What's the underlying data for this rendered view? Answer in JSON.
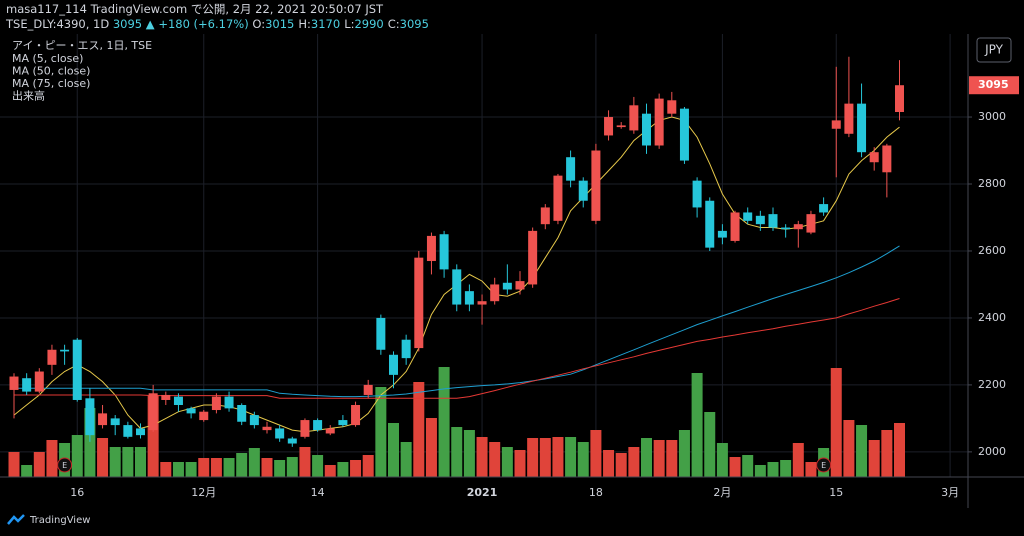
{
  "header": {
    "published": "masa117_114 TradingView.com で公開, 2月 22, 2021 20:50:07 JST",
    "symbol": "TSE_DLY:4390, 1D",
    "price": "3095",
    "arrow": "▲",
    "change": "+180 (+6.17%)",
    "ohlc_labels": [
      "O:",
      "H:",
      "L:",
      "C:"
    ],
    "ohlc_values": [
      3015,
      3170,
      2990,
      3095
    ]
  },
  "footer": {
    "brand": "TradingView"
  },
  "chart_data": {
    "type": "candlestick",
    "instrument": "アイ・ピー・エス, 1日, TSE",
    "currency": "JPY",
    "volume_name": "出来高",
    "up_color": "#ef5350",
    "down_color": "#26c6da",
    "volume_up_color": "#e0443a",
    "volume_down_color": "#43a047",
    "categories": [
      null,
      null,
      null,
      null,
      null,
      "16",
      null,
      null,
      null,
      null,
      null,
      null,
      null,
      null,
      null,
      "12月",
      null,
      null,
      null,
      null,
      null,
      null,
      null,
      null,
      "14",
      null,
      null,
      null,
      null,
      null,
      null,
      null,
      null,
      null,
      null,
      null,
      null,
      "2021",
      null,
      null,
      null,
      null,
      null,
      null,
      null,
      null,
      "18",
      null,
      null,
      null,
      null,
      null,
      null,
      null,
      null,
      null,
      "2月",
      null,
      null,
      null,
      null,
      null,
      null,
      null,
      null,
      "15",
      null,
      null,
      null,
      null,
      null,
      null,
      null,
      null,
      "3月"
    ],
    "events": [
      null,
      null,
      null,
      null,
      "E",
      null,
      null,
      null,
      null,
      null,
      null,
      null,
      null,
      null,
      null,
      null,
      null,
      null,
      null,
      null,
      null,
      null,
      null,
      null,
      null,
      null,
      null,
      null,
      null,
      null,
      null,
      null,
      null,
      null,
      null,
      null,
      null,
      null,
      null,
      null,
      null,
      null,
      null,
      null,
      null,
      null,
      null,
      null,
      null,
      null,
      null,
      null,
      null,
      null,
      null,
      null,
      null,
      null,
      null,
      null,
      null,
      null,
      null,
      null,
      "E",
      null,
      null,
      null,
      null,
      null,
      null,
      null,
      null,
      null,
      null
    ],
    "open": [
      2185,
      2220,
      2180,
      2260,
      2305,
      2335,
      2160,
      2080,
      2100,
      2080,
      2070,
      2065,
      2155,
      2165,
      2130,
      2095,
      2125,
      2165,
      2140,
      2110,
      2065,
      2070,
      2040,
      2045,
      2095,
      2055,
      2095,
      2080,
      2170,
      2400,
      2290,
      2335,
      2310,
      2570,
      2650,
      2545,
      2480,
      2440,
      2450,
      2505,
      2485,
      2500,
      2680,
      2690,
      2880,
      2810,
      2690,
      2945,
      2970,
      2960,
      3010,
      2915,
      3010,
      3025,
      2810,
      2750,
      2660,
      2630,
      2715,
      2705,
      2710,
      2670,
      2665,
      2655,
      2740,
      2965,
      2950,
      3040,
      2865,
      2835,
      3015,
      null,
      null,
      null,
      null
    ],
    "high": [
      2235,
      2235,
      2250,
      2320,
      2320,
      2340,
      2190,
      2140,
      2110,
      2090,
      2085,
      2200,
      2180,
      2175,
      2135,
      2125,
      2175,
      2180,
      2145,
      2120,
      2090,
      2080,
      2045,
      2100,
      2100,
      2080,
      2110,
      2150,
      2215,
      2410,
      2300,
      2350,
      2600,
      2655,
      2660,
      2560,
      2500,
      2470,
      2520,
      2560,
      2540,
      2670,
      2740,
      2830,
      2900,
      2820,
      2920,
      3020,
      2985,
      3060,
      3040,
      3070,
      3075,
      3030,
      2820,
      2760,
      2680,
      2720,
      2730,
      2720,
      2730,
      2680,
      2690,
      2720,
      2760,
      3150,
      3180,
      3100,
      2910,
      2920,
      3170,
      null,
      null,
      null,
      null
    ],
    "low": [
      2100,
      2170,
      2175,
      2230,
      2260,
      2150,
      2030,
      2070,
      2050,
      2040,
      2040,
      2060,
      2140,
      2120,
      2100,
      2090,
      2115,
      2120,
      2080,
      2070,
      2055,
      2030,
      2015,
      2040,
      2060,
      2050,
      2075,
      2075,
      2160,
      2290,
      2190,
      2260,
      2300,
      2530,
      2520,
      2420,
      2420,
      2380,
      2440,
      2470,
      2470,
      2490,
      2665,
      2680,
      2790,
      2730,
      2680,
      2930,
      2965,
      2950,
      2890,
      2905,
      3000,
      2860,
      2700,
      2600,
      2620,
      2625,
      2680,
      2660,
      2660,
      2640,
      2610,
      2650,
      2705,
      2820,
      2940,
      2880,
      2840,
      2760,
      2990,
      null,
      null,
      null,
      null
    ],
    "close": [
      2225,
      2180,
      2240,
      2305,
      2300,
      2155,
      2050,
      2115,
      2080,
      2045,
      2050,
      2175,
      2170,
      2140,
      2115,
      2120,
      2165,
      2130,
      2090,
      2080,
      2075,
      2040,
      2025,
      2095,
      2065,
      2070,
      2080,
      2140,
      2200,
      2305,
      2230,
      2280,
      2580,
      2645,
      2545,
      2440,
      2440,
      2450,
      2500,
      2485,
      2510,
      2660,
      2730,
      2825,
      2810,
      2750,
      2900,
      3000,
      2975,
      3035,
      2915,
      3055,
      3050,
      2870,
      2730,
      2610,
      2640,
      2715,
      2690,
      2680,
      2670,
      2665,
      2680,
      2710,
      2715,
      2990,
      3040,
      2895,
      2895,
      2915,
      3095,
      null,
      null,
      null,
      null
    ],
    "volume": [
      25,
      12,
      25,
      37,
      34,
      42,
      69,
      39,
      30,
      30,
      30,
      82,
      15,
      15,
      15,
      19,
      19,
      19,
      24,
      29,
      19,
      17,
      20,
      30,
      22,
      12,
      15,
      17,
      22,
      90,
      54,
      35,
      95,
      59,
      110,
      50,
      47,
      40,
      35,
      30,
      27,
      39,
      39,
      40,
      40,
      35,
      47,
      27,
      24,
      30,
      39,
      37,
      37,
      47,
      104,
      65,
      34,
      20,
      22,
      12,
      15,
      17,
      34,
      15,
      29,
      109,
      57,
      52,
      37,
      47,
      54,
      null,
      null,
      null,
      null
    ],
    "series": [
      {
        "name": "MA (5, close)",
        "color": "#e6c84a",
        "values": [
          2110,
          2140,
          2170,
          2210,
          2240,
          2260,
          2240,
          2210,
          2170,
          2110,
          2070,
          2080,
          2100,
          2120,
          2130,
          2140,
          2140,
          2135,
          2125,
          2110,
          2095,
          2080,
          2065,
          2060,
          2065,
          2070,
          2075,
          2085,
          2115,
          2170,
          2200,
          2240,
          2310,
          2410,
          2470,
          2500,
          2530,
          2510,
          2470,
          2465,
          2480,
          2520,
          2580,
          2640,
          2720,
          2760,
          2800,
          2840,
          2880,
          2930,
          2960,
          2990,
          3000,
          2990,
          2940,
          2860,
          2770,
          2710,
          2680,
          2670,
          2670,
          2665,
          2670,
          2680,
          2690,
          2750,
          2830,
          2870,
          2900,
          2940,
          2970,
          null,
          null,
          null,
          null
        ]
      },
      {
        "name": "MA (50, close)",
        "color": "#1e9fd0",
        "values": [
          2190,
          2190,
          2190,
          2190,
          2190,
          2190,
          2190,
          2190,
          2190,
          2190,
          2190,
          2185,
          2185,
          2185,
          2185,
          2185,
          2185,
          2185,
          2185,
          2185,
          2185,
          2175,
          2172,
          2170,
          2168,
          2166,
          2165,
          2165,
          2166,
          2168,
          2170,
          2173,
          2178,
          2183,
          2188,
          2192,
          2195,
          2198,
          2200,
          2203,
          2207,
          2212,
          2218,
          2225,
          2232,
          2245,
          2260,
          2275,
          2290,
          2305,
          2320,
          2335,
          2350,
          2365,
          2380,
          2393,
          2406,
          2419,
          2432,
          2445,
          2458,
          2470,
          2482,
          2494,
          2506,
          2520,
          2535,
          2552,
          2570,
          2592,
          2615,
          null,
          null,
          null,
          null
        ]
      },
      {
        "name": "MA (75, close)",
        "color": "#e53935",
        "values": [
          2170,
          2170,
          2170,
          2170,
          2170,
          2170,
          2170,
          2170,
          2170,
          2170,
          2170,
          2168,
          2168,
          2168,
          2168,
          2168,
          2168,
          2168,
          2168,
          2168,
          2168,
          2160,
          2160,
          2160,
          2160,
          2160,
          2160,
          2160,
          2160,
          2160,
          2160,
          2160,
          2160,
          2160,
          2160,
          2160,
          2165,
          2174,
          2183,
          2193,
          2202,
          2211,
          2220,
          2229,
          2238,
          2248,
          2257,
          2266,
          2275,
          2284,
          2294,
          2303,
          2312,
          2321,
          2330,
          2336,
          2343,
          2349,
          2356,
          2362,
          2368,
          2375,
          2381,
          2388,
          2394,
          2400,
          2412,
          2423,
          2435,
          2446,
          2458,
          null,
          null,
          null,
          null
        ]
      }
    ],
    "ylim": [
      1925,
      3239
    ],
    "yticks": [
      2000,
      2200,
      2400,
      2600,
      2800,
      3000
    ],
    "grid": true
  }
}
